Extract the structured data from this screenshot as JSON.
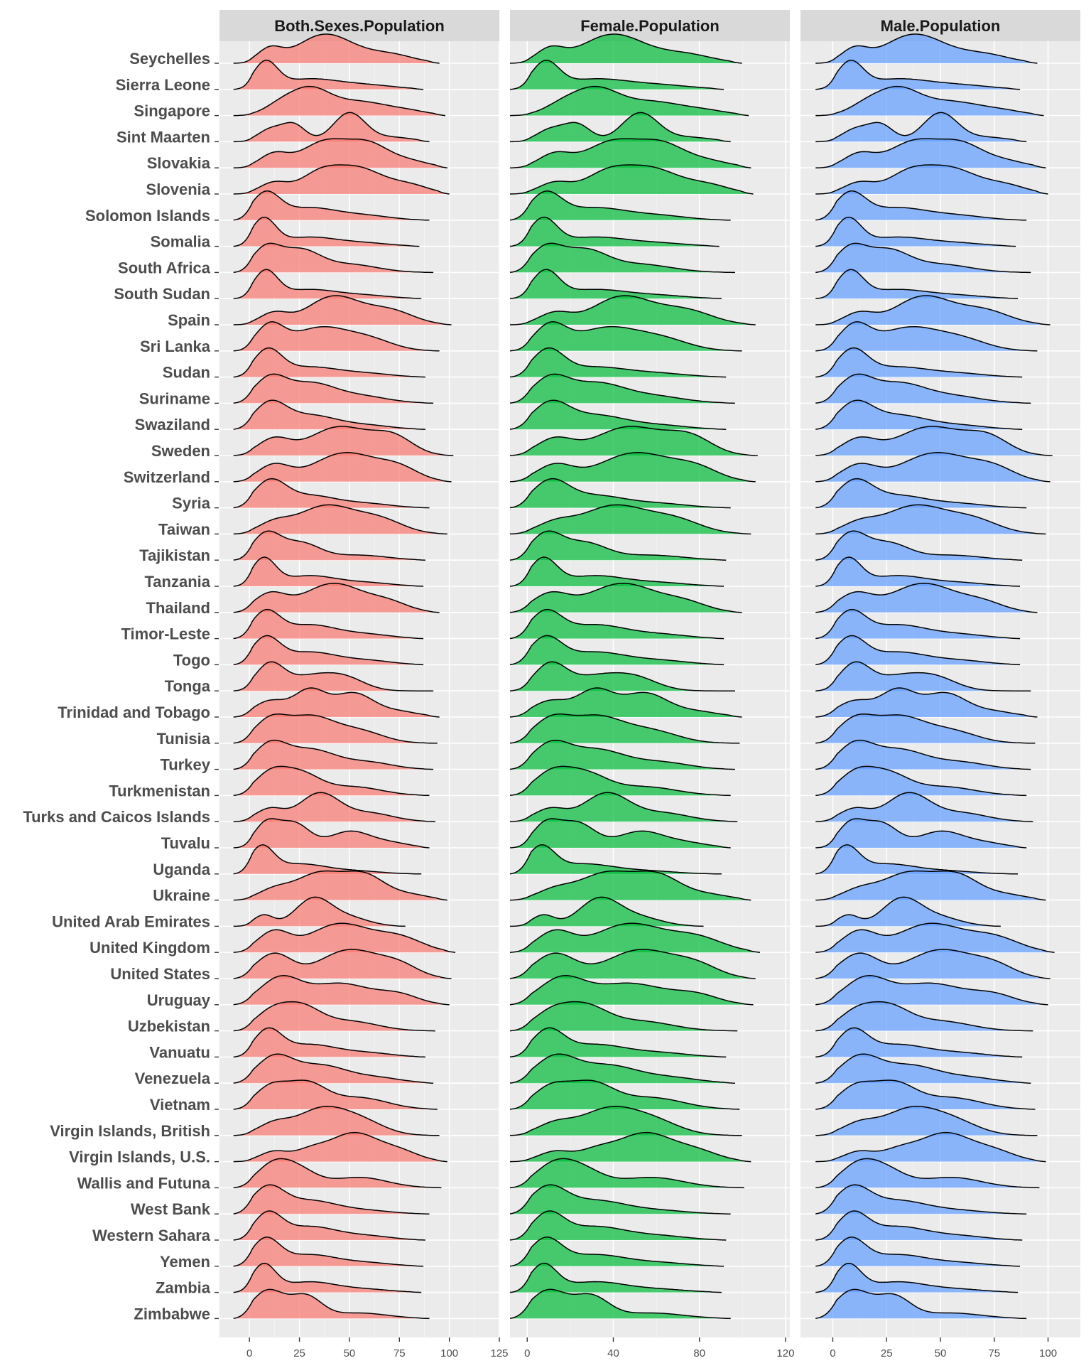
{
  "chart_data": {
    "type": "ridgeline",
    "panels": [
      {
        "title": "Both.Sexes.Population",
        "color": "#F8766D",
        "xlim": [
          -15,
          125
        ],
        "ticks": [
          0,
          25,
          50,
          75,
          100,
          125
        ],
        "minor": [
          12.5,
          37.5,
          62.5,
          87.5,
          112.5
        ]
      },
      {
        "title": "Female.Population",
        "color": "#00BA38",
        "xlim": [
          -8,
          122
        ],
        "ticks": [
          0,
          40,
          80,
          120
        ],
        "minor": [
          20,
          60,
          100
        ]
      },
      {
        "title": "Male.Population",
        "color": "#619CFF",
        "xlim": [
          -15,
          115
        ],
        "ticks": [
          0,
          25,
          50,
          75,
          100
        ],
        "minor": [
          12.5,
          37.5,
          62.5,
          87.5
        ]
      }
    ],
    "countries": [
      {
        "name": "Seychelles",
        "peaks": [
          [
            10,
            0.45,
            6
          ],
          [
            38,
            1.0,
            14
          ],
          [
            70,
            0.3,
            12
          ]
        ],
        "end": 95
      },
      {
        "name": "Sierra Leone",
        "peaks": [
          [
            8,
            1.0,
            6
          ],
          [
            30,
            0.4,
            15
          ],
          [
            60,
            0.15,
            14
          ]
        ],
        "end": 87
      },
      {
        "name": "Singapore",
        "peaks": [
          [
            15,
            0.35,
            8
          ],
          [
            30,
            1.0,
            10
          ],
          [
            55,
            0.55,
            14
          ],
          [
            80,
            0.15,
            10
          ]
        ],
        "end": 98
      },
      {
        "name": "Sint Maarten",
        "peaks": [
          [
            10,
            0.4,
            6
          ],
          [
            22,
            0.6,
            6
          ],
          [
            50,
            1.0,
            8
          ],
          [
            72,
            0.15,
            10
          ]
        ],
        "end": 90
      },
      {
        "name": "Slovakia",
        "peaks": [
          [
            12,
            0.5,
            7
          ],
          [
            38,
            1.0,
            12
          ],
          [
            60,
            0.8,
            10
          ],
          [
            80,
            0.25,
            10
          ]
        ],
        "end": 99
      },
      {
        "name": "Slovenia",
        "peaks": [
          [
            12,
            0.45,
            7
          ],
          [
            35,
            0.8,
            10
          ],
          [
            55,
            1.0,
            12
          ],
          [
            80,
            0.35,
            10
          ]
        ],
        "end": 100
      },
      {
        "name": "Solomon Islands",
        "peaks": [
          [
            8,
            1.0,
            7
          ],
          [
            30,
            0.5,
            15
          ],
          [
            60,
            0.15,
            12
          ]
        ],
        "end": 90
      },
      {
        "name": "Somalia",
        "peaks": [
          [
            7,
            1.0,
            6
          ],
          [
            30,
            0.35,
            15
          ],
          [
            60,
            0.1,
            12
          ]
        ],
        "end": 85
      },
      {
        "name": "South Africa",
        "peaks": [
          [
            8,
            1.0,
            7
          ],
          [
            25,
            0.95,
            10
          ],
          [
            50,
            0.35,
            14
          ]
        ],
        "end": 92
      },
      {
        "name": "South Sudan",
        "peaks": [
          [
            8,
            1.0,
            6
          ],
          [
            30,
            0.35,
            15
          ],
          [
            60,
            0.1,
            12
          ]
        ],
        "end": 86
      },
      {
        "name": "Spain",
        "peaks": [
          [
            12,
            0.4,
            7
          ],
          [
            42,
            1.0,
            13
          ],
          [
            70,
            0.5,
            12
          ]
        ],
        "end": 101
      },
      {
        "name": "Sri Lanka",
        "peaks": [
          [
            10,
            0.9,
            7
          ],
          [
            35,
            0.85,
            14
          ],
          [
            60,
            0.4,
            12
          ]
        ],
        "end": 95
      },
      {
        "name": "Sudan",
        "peaks": [
          [
            9,
            1.0,
            7
          ],
          [
            30,
            0.4,
            15
          ],
          [
            60,
            0.12,
            12
          ]
        ],
        "end": 88
      },
      {
        "name": "Suriname",
        "peaks": [
          [
            10,
            1.0,
            8
          ],
          [
            30,
            0.8,
            12
          ],
          [
            55,
            0.3,
            14
          ]
        ],
        "end": 92
      },
      {
        "name": "Swaziland",
        "peaks": [
          [
            10,
            1.0,
            8
          ],
          [
            30,
            0.6,
            14
          ],
          [
            60,
            0.15,
            12
          ]
        ],
        "end": 88
      },
      {
        "name": "Sweden",
        "peaks": [
          [
            12,
            0.55,
            8
          ],
          [
            45,
            1.0,
            15
          ],
          [
            72,
            0.6,
            10
          ]
        ],
        "end": 102
      },
      {
        "name": "Switzerland",
        "peaks": [
          [
            12,
            0.55,
            8
          ],
          [
            48,
            1.0,
            16
          ],
          [
            75,
            0.4,
            10
          ]
        ],
        "end": 101
      },
      {
        "name": "Syria",
        "peaks": [
          [
            10,
            1.0,
            8
          ],
          [
            30,
            0.5,
            14
          ],
          [
            60,
            0.15,
            12
          ]
        ],
        "end": 90
      },
      {
        "name": "Taiwan",
        "peaks": [
          [
            12,
            0.35,
            8
          ],
          [
            38,
            1.0,
            14
          ],
          [
            65,
            0.5,
            12
          ]
        ],
        "end": 99
      },
      {
        "name": "Tajikistan",
        "peaks": [
          [
            8,
            1.0,
            7
          ],
          [
            25,
            0.7,
            10
          ],
          [
            55,
            0.2,
            14
          ]
        ],
        "end": 88
      },
      {
        "name": "Tanzania",
        "peaks": [
          [
            7,
            1.0,
            6
          ],
          [
            30,
            0.4,
            14
          ],
          [
            60,
            0.12,
            12
          ]
        ],
        "end": 87
      },
      {
        "name": "Thailand",
        "peaks": [
          [
            10,
            0.6,
            8
          ],
          [
            42,
            1.0,
            15
          ],
          [
            70,
            0.3,
            10
          ]
        ],
        "end": 95
      },
      {
        "name": "Timor-Leste",
        "peaks": [
          [
            8,
            1.0,
            7
          ],
          [
            30,
            0.55,
            14
          ],
          [
            60,
            0.15,
            12
          ]
        ],
        "end": 87
      },
      {
        "name": "Togo",
        "peaks": [
          [
            8,
            1.0,
            7
          ],
          [
            30,
            0.5,
            14
          ],
          [
            60,
            0.15,
            12
          ]
        ],
        "end": 87
      },
      {
        "name": "Tonga",
        "peaks": [
          [
            10,
            1.0,
            7
          ],
          [
            30,
            0.55,
            12
          ],
          [
            48,
            0.45,
            10
          ]
        ],
        "end": 92
      },
      {
        "name": "Trinidad and Tobago",
        "peaks": [
          [
            10,
            0.6,
            8
          ],
          [
            30,
            1.0,
            8
          ],
          [
            52,
            0.9,
            10
          ],
          [
            75,
            0.2,
            10
          ]
        ],
        "end": 95
      },
      {
        "name": "Tunisia",
        "peaks": [
          [
            10,
            0.8,
            8
          ],
          [
            30,
            1.0,
            12
          ],
          [
            55,
            0.45,
            12
          ]
        ],
        "end": 94
      },
      {
        "name": "Turkey",
        "peaks": [
          [
            10,
            1.0,
            8
          ],
          [
            30,
            0.9,
            13
          ],
          [
            60,
            0.3,
            12
          ]
        ],
        "end": 92
      },
      {
        "name": "Turkmenistan",
        "peaks": [
          [
            10,
            0.9,
            8
          ],
          [
            25,
            1.0,
            10
          ],
          [
            52,
            0.4,
            14
          ]
        ],
        "end": 90
      },
      {
        "name": "Turks and Caicos Islands",
        "peaks": [
          [
            10,
            0.45,
            7
          ],
          [
            35,
            1.0,
            10
          ],
          [
            60,
            0.3,
            12
          ]
        ],
        "end": 93
      },
      {
        "name": "Tuvalu",
        "peaks": [
          [
            8,
            0.9,
            6
          ],
          [
            22,
            1.0,
            8
          ],
          [
            50,
            0.65,
            10
          ],
          [
            70,
            0.2,
            10
          ]
        ],
        "end": 90
      },
      {
        "name": "Uganda",
        "peaks": [
          [
            6,
            1.0,
            6
          ],
          [
            25,
            0.4,
            14
          ],
          [
            55,
            0.1,
            12
          ]
        ],
        "end": 86
      },
      {
        "name": "Ukraine",
        "peaks": [
          [
            12,
            0.35,
            8
          ],
          [
            35,
            1.0,
            12
          ],
          [
            58,
            0.85,
            10
          ],
          [
            80,
            0.2,
            10
          ]
        ],
        "end": 99
      },
      {
        "name": "United Arab Emirates",
        "peaks": [
          [
            7,
            0.4,
            5
          ],
          [
            32,
            1.0,
            9
          ],
          [
            50,
            0.3,
            10
          ]
        ],
        "end": 78
      },
      {
        "name": "United Kingdom",
        "peaks": [
          [
            12,
            0.7,
            8
          ],
          [
            45,
            1.0,
            15
          ],
          [
            75,
            0.5,
            12
          ]
        ],
        "end": 103
      },
      {
        "name": "United States",
        "peaks": [
          [
            12,
            0.85,
            9
          ],
          [
            50,
            1.0,
            15
          ],
          [
            75,
            0.4,
            10
          ]
        ],
        "end": 101
      },
      {
        "name": "Uruguay",
        "peaks": [
          [
            15,
            1.0,
            10
          ],
          [
            45,
            0.85,
            16
          ],
          [
            75,
            0.35,
            10
          ]
        ],
        "end": 100
      },
      {
        "name": "Uzbekistan",
        "peaks": [
          [
            10,
            0.65,
            8
          ],
          [
            25,
            1.0,
            10
          ],
          [
            50,
            0.4,
            14
          ]
        ],
        "end": 93
      },
      {
        "name": "Vanuatu",
        "peaks": [
          [
            9,
            1.0,
            7
          ],
          [
            30,
            0.5,
            14
          ],
          [
            60,
            0.15,
            12
          ]
        ],
        "end": 88
      },
      {
        "name": "Venezuela",
        "peaks": [
          [
            12,
            1.0,
            9
          ],
          [
            35,
            0.75,
            14
          ],
          [
            65,
            0.2,
            12
          ]
        ],
        "end": 92
      },
      {
        "name": "Vietnam",
        "peaks": [
          [
            10,
            0.8,
            8
          ],
          [
            28,
            1.0,
            10
          ],
          [
            55,
            0.45,
            14
          ]
        ],
        "end": 94
      },
      {
        "name": "Virgin Islands, British",
        "peaks": [
          [
            12,
            0.45,
            8
          ],
          [
            35,
            1.0,
            12
          ],
          [
            55,
            0.6,
            12
          ]
        ],
        "end": 95
      },
      {
        "name": "Virgin Islands, U.S.",
        "peaks": [
          [
            12,
            0.35,
            7
          ],
          [
            30,
            0.35,
            8
          ],
          [
            52,
            1.0,
            12
          ],
          [
            75,
            0.35,
            10
          ]
        ],
        "end": 99
      },
      {
        "name": "Wallis and Futuna",
        "peaks": [
          [
            10,
            0.75,
            8
          ],
          [
            22,
            1.0,
            10
          ],
          [
            55,
            0.5,
            14
          ]
        ],
        "end": 96
      },
      {
        "name": "West Bank",
        "peaks": [
          [
            9,
            1.0,
            8
          ],
          [
            30,
            0.55,
            14
          ],
          [
            60,
            0.12,
            12
          ]
        ],
        "end": 90
      },
      {
        "name": "Western Sahara",
        "peaks": [
          [
            9,
            1.0,
            7
          ],
          [
            30,
            0.55,
            14
          ],
          [
            60,
            0.15,
            12
          ]
        ],
        "end": 88
      },
      {
        "name": "Yemen",
        "peaks": [
          [
            8,
            1.0,
            7
          ],
          [
            30,
            0.45,
            14
          ],
          [
            60,
            0.12,
            12
          ]
        ],
        "end": 87
      },
      {
        "name": "Zambia",
        "peaks": [
          [
            7,
            1.0,
            6
          ],
          [
            30,
            0.4,
            14
          ],
          [
            60,
            0.1,
            12
          ]
        ],
        "end": 86
      },
      {
        "name": "Zimbabwe",
        "peaks": [
          [
            9,
            1.0,
            8
          ],
          [
            28,
            0.8,
            8
          ],
          [
            55,
            0.2,
            14
          ]
        ],
        "end": 90
      }
    ]
  }
}
